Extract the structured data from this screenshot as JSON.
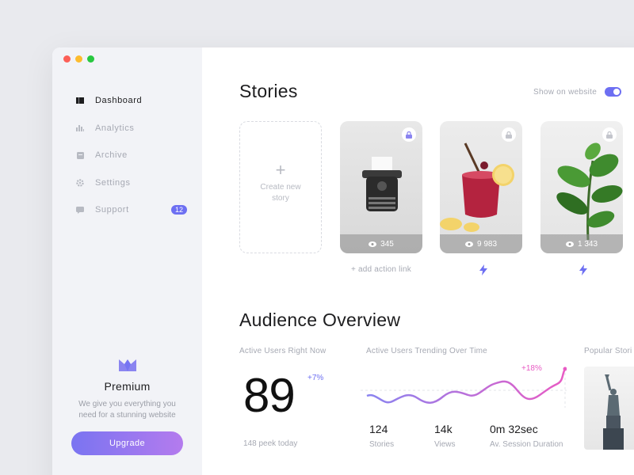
{
  "sidebar": {
    "items": [
      {
        "label": "Dashboard",
        "icon": "dashboard-icon"
      },
      {
        "label": "Analytics",
        "icon": "analytics-icon"
      },
      {
        "label": "Archive",
        "icon": "archive-icon"
      },
      {
        "label": "Settings",
        "icon": "settings-icon"
      },
      {
        "label": "Support",
        "icon": "support-icon",
        "badge": "12"
      }
    ],
    "premium": {
      "title": "Premium",
      "description": "We give you everything you need for a stunning website",
      "button": "Upgrade"
    }
  },
  "stories": {
    "title": "Stories",
    "show_on_website": "Show on website",
    "create_plus": "+",
    "create_label": "Create new story",
    "cards": [
      {
        "views": "345",
        "image": "typewriter"
      },
      {
        "views": "9 983",
        "image": "cocktail"
      },
      {
        "views": "1 343",
        "image": "plant"
      }
    ],
    "add_action_link": "+ add action link"
  },
  "audience": {
    "title": "Audience Overview",
    "active_now_label": "Active Users Right Now",
    "active_now_value": "89",
    "active_now_change": "+7%",
    "peek_today": "148 peek today",
    "trending_label": "Active Users Trending Over Time",
    "trending_change": "+18%",
    "popular_label": "Popular Stori",
    "stats": [
      {
        "value": "124",
        "label": "Stories"
      },
      {
        "value": "14k",
        "label": "Views"
      },
      {
        "value": "0m 32sec",
        "label": "Av. Session Duration"
      }
    ]
  },
  "colors": {
    "accent": "#6d6ff2",
    "pink": "#e85bc4",
    "muted": "#a6a9b3"
  }
}
